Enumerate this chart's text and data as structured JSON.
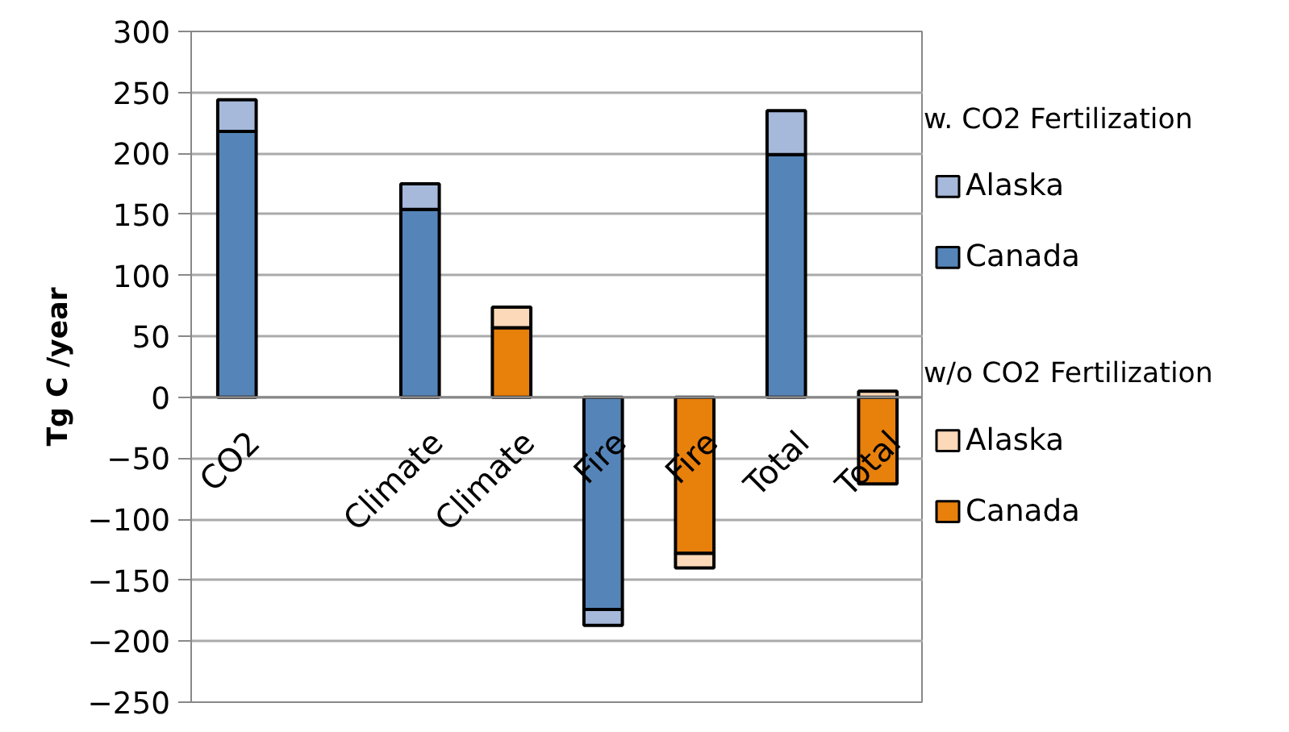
{
  "chart_data": {
    "type": "bar",
    "stacked": true,
    "ylabel": "Tg C /year",
    "categories": [
      "CO2",
      null,
      "Climate",
      "Climate",
      "Fire",
      "Fire",
      "Total",
      "Total"
    ],
    "series": [
      {
        "name": "Canada",
        "color": "#5585b8",
        "values": [
          218,
          null,
          154,
          null,
          -174,
          null,
          199,
          null
        ]
      },
      {
        "name": "Alaska",
        "color": "#a6b9db",
        "values": [
          26,
          null,
          21,
          null,
          -13,
          null,
          36,
          null
        ]
      },
      {
        "name": "Canada",
        "color": "#e8800c",
        "values": [
          null,
          null,
          null,
          57,
          null,
          -128,
          null,
          -71
        ]
      },
      {
        "name": "Alaska",
        "color": "#fcd9b8",
        "values": [
          null,
          null,
          null,
          17,
          null,
          -12,
          null,
          5
        ]
      }
    ],
    "annotations": [
      "w. CO2 Fertilization",
      "w/o CO2 Fertilization"
    ],
    "ylim": [
      -250,
      300
    ],
    "yticks": [
      -250,
      -200,
      -150,
      -100,
      -50,
      0,
      50,
      100,
      150,
      200,
      250,
      300
    ],
    "grid": "y",
    "legend": "right"
  }
}
